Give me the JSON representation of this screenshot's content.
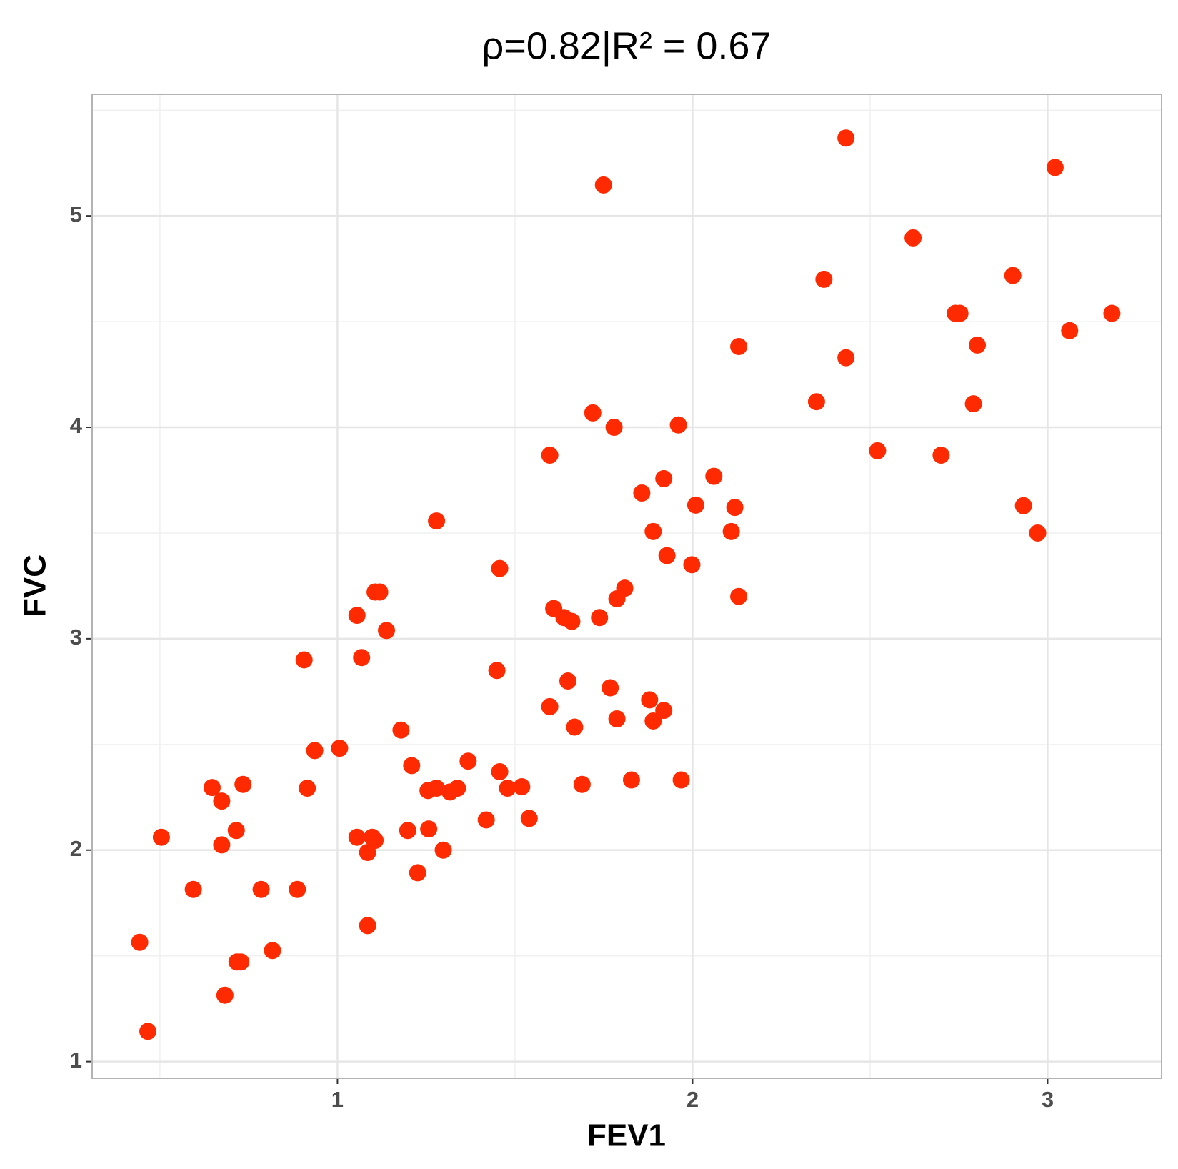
{
  "chart_data": {
    "type": "scatter",
    "title": "ρ=0.82|R² = 0.67",
    "xlabel": "FEV1",
    "ylabel": "FVC",
    "color": "#ff2a00",
    "grid": true,
    "minor_grid": true,
    "xlim": [
      0.309,
      3.321
    ],
    "ylim": [
      0.921,
      5.575
    ],
    "xticks": [
      1,
      2,
      3
    ],
    "yticks": [
      1,
      2,
      3,
      4,
      5
    ],
    "x": [
      0.443,
      0.466,
      0.504,
      0.594,
      0.647,
      0.674,
      0.674,
      0.683,
      0.715,
      0.717,
      0.728,
      0.734,
      0.785,
      0.817,
      0.887,
      0.906,
      0.915,
      0.936,
      1.006,
      1.055,
      1.055,
      1.068,
      1.085,
      1.085,
      1.098,
      1.106,
      1.106,
      1.119,
      1.138,
      1.179,
      1.198,
      1.209,
      1.226,
      1.255,
      1.257,
      1.279,
      1.279,
      1.298,
      1.317,
      1.338,
      1.368,
      1.419,
      1.449,
      1.457,
      1.457,
      1.479,
      1.519,
      1.54,
      1.598,
      1.598,
      1.609,
      1.638,
      1.649,
      1.66,
      1.668,
      1.689,
      1.719,
      1.738,
      1.749,
      1.768,
      1.779,
      1.787,
      1.787,
      1.809,
      1.828,
      1.857,
      1.879,
      1.889,
      1.889,
      1.919,
      1.919,
      1.928,
      1.96,
      1.968,
      1.998,
      2.009,
      2.06,
      2.109,
      2.119,
      2.13,
      2.13,
      2.349,
      2.37,
      2.432,
      2.432,
      2.521,
      2.621,
      2.7,
      2.74,
      2.753,
      2.791,
      2.802,
      2.902,
      2.932,
      2.972,
      3.021,
      3.062,
      3.181
    ],
    "values": [
      1.564,
      1.143,
      2.061,
      1.814,
      2.296,
      2.232,
      2.025,
      1.314,
      2.093,
      1.471,
      1.471,
      2.311,
      1.814,
      1.525,
      1.814,
      2.9,
      2.293,
      2.471,
      2.482,
      3.111,
      2.061,
      2.911,
      1.989,
      1.643,
      2.061,
      2.046,
      3.221,
      3.221,
      3.039,
      2.568,
      2.093,
      2.4,
      1.893,
      2.282,
      2.1,
      3.557,
      2.293,
      2.0,
      2.275,
      2.293,
      2.421,
      2.143,
      2.85,
      3.332,
      2.371,
      2.293,
      2.3,
      2.15,
      3.868,
      2.679,
      3.143,
      3.1,
      2.8,
      3.082,
      2.582,
      2.311,
      4.068,
      3.1,
      5.146,
      2.768,
      4.0,
      3.189,
      2.621,
      3.239,
      2.332,
      3.689,
      2.711,
      3.507,
      2.611,
      3.757,
      2.661,
      3.393,
      4.011,
      2.332,
      3.35,
      3.632,
      3.768,
      3.507,
      3.621,
      4.382,
      3.2,
      4.121,
      4.7,
      5.368,
      4.329,
      3.889,
      4.896,
      3.868,
      4.539,
      4.539,
      4.111,
      4.389,
      4.718,
      3.629,
      3.5,
      5.229,
      4.457,
      4.539
    ]
  }
}
